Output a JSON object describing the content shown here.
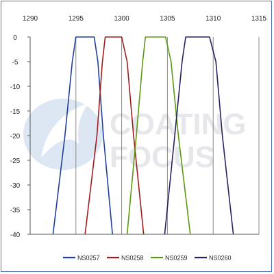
{
  "chart_data": {
    "type": "line",
    "x_axis_position": "top",
    "xlim": [
      1290,
      1315
    ],
    "ylim": [
      -40,
      0
    ],
    "x_ticks": [
      "1290",
      "1295",
      "1300",
      "1305",
      "1310",
      "1315"
    ],
    "y_ticks": [
      "0",
      "-5",
      "-10",
      "-15",
      "-20",
      "-25",
      "-30",
      "-35",
      "-40"
    ],
    "grid": "vertical",
    "legend_position": "bottom",
    "series": [
      {
        "name": "NS0257",
        "color": "#1f3f9a",
        "x": [
          1292.5,
          1293.8,
          1294.6,
          1295.0,
          1297.0,
          1297.4,
          1298.0,
          1299.0
        ],
        "y": [
          -40,
          -20,
          -5,
          0,
          0,
          -5,
          -20,
          -40
        ]
      },
      {
        "name": "NS0258",
        "color": "#a01c1c",
        "x": [
          1296.0,
          1297.3,
          1297.9,
          1298.2,
          1300.0,
          1300.6,
          1301.3,
          1302.4
        ],
        "y": [
          -40,
          -20,
          -5,
          0,
          0,
          -5,
          -20,
          -40
        ]
      },
      {
        "name": "NS0259",
        "color": "#5a9a10",
        "x": [
          1300.6,
          1301.6,
          1302.3,
          1302.6,
          1304.8,
          1305.4,
          1306.2,
          1307.5
        ],
        "y": [
          -40,
          -20,
          -5,
          0,
          0,
          -5,
          -20,
          -40
        ]
      },
      {
        "name": "NS0260",
        "color": "#2a2060",
        "x": [
          1304.7,
          1305.8,
          1306.6,
          1307.0,
          1309.6,
          1310.3,
          1311.0,
          1312.2
        ],
        "y": [
          -40,
          -20,
          -5,
          0,
          0,
          -5,
          -20,
          -40
        ]
      }
    ],
    "watermark": {
      "line1": "COATING",
      "line2": "FOCUS"
    }
  }
}
